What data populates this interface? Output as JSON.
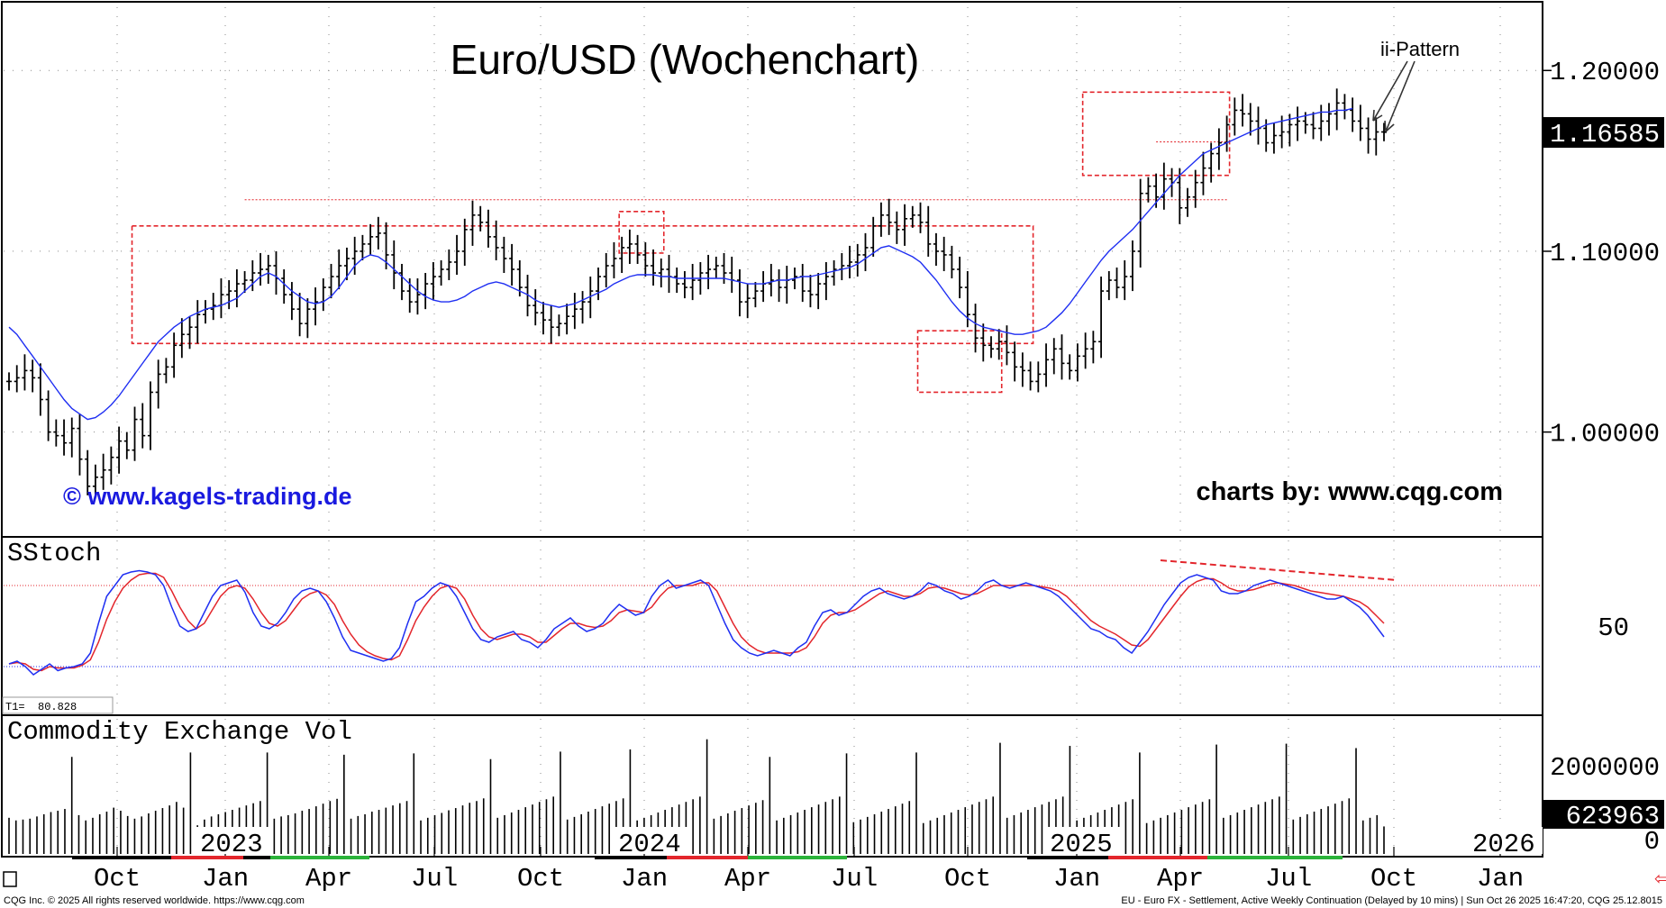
{
  "chart_data": [
    {
      "type": "ohlc",
      "panel": "price",
      "title": "Euro/USD (Wochenchart)",
      "source_left": "© www.kagels-trading.de",
      "source_right": "charts by: www.cqg.com",
      "annotation": "ii-Pattern",
      "ylim": [
        0.945,
        1.235
      ],
      "yticks": [
        {
          "value": 1.0,
          "label": "1.00000"
        },
        {
          "value": 1.1,
          "label": "1.10000"
        },
        {
          "value": 1.2,
          "label": "1.20000"
        }
      ],
      "last_price": {
        "value": 1.16585,
        "label": "1.16585"
      },
      "x_week_index_range": [
        0,
        172
      ],
      "series": [
        {
          "name": "price",
          "closes": [
            1.028,
            1.03,
            1.034,
            1.03,
            1.018,
            1.0,
            0.998,
            0.994,
            1.002,
            0.985,
            0.97,
            0.975,
            0.979,
            0.986,
            0.995,
            0.99,
            1.007,
            0.998,
            1.022,
            1.032,
            1.036,
            1.048,
            1.054,
            1.058,
            1.065,
            1.068,
            1.07,
            1.076,
            1.078,
            1.082,
            1.084,
            1.088,
            1.09,
            1.092,
            1.085,
            1.076,
            1.068,
            1.06,
            1.068,
            1.072,
            1.08,
            1.086,
            1.092,
            1.096,
            1.1,
            1.104,
            1.108,
            1.11,
            1.098,
            1.088,
            1.078,
            1.072,
            1.076,
            1.082,
            1.086,
            1.09,
            1.094,
            1.1,
            1.112,
            1.12,
            1.116,
            1.108,
            1.102,
            1.096,
            1.09,
            1.08,
            1.07,
            1.066,
            1.062,
            1.058,
            1.06,
            1.064,
            1.068,
            1.072,
            1.078,
            1.086,
            1.092,
            1.096,
            1.102,
            1.104,
            1.098,
            1.092,
            1.088,
            1.09,
            1.086,
            1.082,
            1.08,
            1.084,
            1.088,
            1.09,
            1.092,
            1.088,
            1.084,
            1.072,
            1.074,
            1.078,
            1.082,
            1.084,
            1.08,
            1.084,
            1.086,
            1.078,
            1.076,
            1.082,
            1.086,
            1.09,
            1.092,
            1.094,
            1.098,
            1.102,
            1.114,
            1.12,
            1.116,
            1.112,
            1.118,
            1.12,
            1.116,
            1.104,
            1.1,
            1.098,
            1.09,
            1.08,
            1.065,
            1.052,
            1.048,
            1.046,
            1.05,
            1.044,
            1.036,
            1.034,
            1.028,
            1.032,
            1.04,
            1.046,
            1.038,
            1.034,
            1.042,
            1.046,
            1.05,
            1.078,
            1.084,
            1.08,
            1.086,
            1.1,
            1.132,
            1.136,
            1.13,
            1.14,
            1.138,
            1.124,
            1.13,
            1.138,
            1.146,
            1.154,
            1.16,
            1.17,
            1.178,
            1.176,
            1.172,
            1.168,
            1.16,
            1.164,
            1.166,
            1.17,
            1.172,
            1.17,
            1.168,
            1.172,
            1.176,
            1.182,
            1.178,
            1.172,
            1.168,
            1.162,
            1.166,
            1.16585
          ]
        },
        {
          "name": "moving average",
          "values": [
            1.058,
            1.054,
            1.048,
            1.042,
            1.036,
            1.03,
            1.024,
            1.018,
            1.013,
            1.01,
            1.007,
            1.008,
            1.011,
            1.015,
            1.02,
            1.026,
            1.032,
            1.038,
            1.044,
            1.05,
            1.054,
            1.058,
            1.061,
            1.064,
            1.066,
            1.068,
            1.069,
            1.07,
            1.072,
            1.074,
            1.078,
            1.082,
            1.086,
            1.088,
            1.086,
            1.082,
            1.078,
            1.075,
            1.072,
            1.071,
            1.072,
            1.075,
            1.08,
            1.086,
            1.092,
            1.096,
            1.098,
            1.097,
            1.094,
            1.09,
            1.086,
            1.082,
            1.078,
            1.075,
            1.073,
            1.072,
            1.072,
            1.073,
            1.075,
            1.078,
            1.08,
            1.082,
            1.083,
            1.082,
            1.08,
            1.078,
            1.076,
            1.073,
            1.071,
            1.07,
            1.069,
            1.07,
            1.071,
            1.073,
            1.075,
            1.077,
            1.079,
            1.082,
            1.084,
            1.086,
            1.087,
            1.087,
            1.087,
            1.086,
            1.086,
            1.085,
            1.085,
            1.085,
            1.085,
            1.085,
            1.085,
            1.085,
            1.084,
            1.083,
            1.082,
            1.082,
            1.082,
            1.083,
            1.084,
            1.084,
            1.085,
            1.086,
            1.086,
            1.087,
            1.088,
            1.089,
            1.09,
            1.091,
            1.093,
            1.096,
            1.099,
            1.102,
            1.103,
            1.101,
            1.099,
            1.097,
            1.094,
            1.089,
            1.084,
            1.078,
            1.072,
            1.067,
            1.063,
            1.06,
            1.058,
            1.057,
            1.056,
            1.055,
            1.054,
            1.054,
            1.055,
            1.056,
            1.058,
            1.062,
            1.066,
            1.071,
            1.077,
            1.083,
            1.089,
            1.095,
            1.1,
            1.104,
            1.108,
            1.112,
            1.117,
            1.122,
            1.127,
            1.132,
            1.137,
            1.142,
            1.146,
            1.15,
            1.154,
            1.156,
            1.158,
            1.16,
            1.162,
            1.164,
            1.166,
            1.168,
            1.17,
            1.171,
            1.172,
            1.173,
            1.174,
            1.175,
            1.176,
            1.177,
            1.177,
            1.178,
            1.178,
            1.179
          ]
        }
      ],
      "zones": [
        {
          "from_index": 16,
          "to_index": 130,
          "low": 1.049,
          "high": 1.114
        },
        {
          "from_index": 78,
          "to_index": 83,
          "low": 1.099,
          "high": 1.122
        },
        {
          "from_index": 116,
          "to_index": 126,
          "low": 1.022,
          "high": 1.056
        },
        {
          "from_index": 137,
          "to_index": 155,
          "low": 1.142,
          "high": 1.188
        }
      ]
    },
    {
      "type": "line",
      "panel": "indicator",
      "title": "SStoch",
      "readout": "T1=  80.828",
      "yticks": [
        {
          "value": 50,
          "label": "50"
        }
      ],
      "ylim": [
        0,
        100
      ],
      "levels": [
        80,
        20
      ],
      "series": [
        {
          "name": "fast",
          "values": [
            22,
            24,
            20,
            14,
            18,
            22,
            17,
            19,
            20,
            22,
            30,
            52,
            72,
            80,
            88,
            90,
            91,
            90,
            88,
            80,
            64,
            50,
            46,
            48,
            60,
            72,
            80,
            82,
            84,
            75,
            60,
            50,
            48,
            52,
            60,
            70,
            76,
            78,
            76,
            68,
            56,
            42,
            32,
            30,
            28,
            26,
            24,
            26,
            34,
            52,
            68,
            72,
            78,
            82,
            80,
            72,
            60,
            48,
            40,
            38,
            42,
            44,
            46,
            40,
            38,
            34,
            40,
            48,
            52,
            56,
            50,
            46,
            48,
            52,
            60,
            66,
            62,
            58,
            60,
            72,
            80,
            84,
            78,
            80,
            82,
            84,
            80,
            66,
            52,
            40,
            34,
            30,
            28,
            30,
            32,
            30,
            28,
            34,
            38,
            50,
            60,
            62,
            58,
            60,
            66,
            72,
            76,
            78,
            74,
            72,
            70,
            72,
            76,
            82,
            80,
            76,
            74,
            70,
            72,
            76,
            82,
            84,
            80,
            78,
            80,
            82,
            80,
            78,
            76,
            72,
            66,
            60,
            54,
            48,
            46,
            42,
            40,
            34,
            30,
            38,
            46,
            56,
            66,
            74,
            82,
            86,
            88,
            86,
            84,
            76,
            74,
            74,
            76,
            80,
            82,
            84,
            82,
            80,
            78,
            76,
            74,
            72,
            70,
            70,
            72,
            68,
            64,
            58,
            50,
            42
          ]
        },
        {
          "name": "slow",
          "values": [
            22,
            23,
            22,
            18,
            17,
            20,
            19,
            19,
            19,
            21,
            25,
            38,
            55,
            68,
            78,
            84,
            88,
            89,
            89,
            86,
            76,
            64,
            54,
            48,
            52,
            62,
            72,
            78,
            80,
            78,
            70,
            60,
            52,
            50,
            54,
            62,
            70,
            74,
            76,
            73,
            66,
            54,
            44,
            36,
            31,
            28,
            26,
            25,
            28,
            40,
            54,
            64,
            72,
            78,
            80,
            78,
            70,
            58,
            48,
            42,
            40,
            42,
            44,
            44,
            42,
            38,
            38,
            43,
            48,
            52,
            52,
            50,
            49,
            50,
            54,
            60,
            62,
            61,
            60,
            64,
            72,
            78,
            80,
            80,
            80,
            82,
            82,
            76,
            64,
            52,
            42,
            36,
            32,
            30,
            30,
            30,
            30,
            31,
            34,
            42,
            52,
            58,
            60,
            60,
            62,
            66,
            70,
            74,
            76,
            74,
            72,
            72,
            74,
            78,
            79,
            78,
            76,
            74,
            73,
            74,
            77,
            80,
            80,
            80,
            80,
            80,
            80,
            79,
            78,
            76,
            72,
            66,
            60,
            54,
            50,
            47,
            44,
            40,
            36,
            35,
            40,
            48,
            56,
            64,
            72,
            79,
            83,
            85,
            85,
            82,
            78,
            76,
            76,
            77,
            79,
            81,
            82,
            81,
            80,
            78,
            76,
            75,
            74,
            73,
            72,
            70,
            68,
            64,
            58,
            52
          ]
        }
      ],
      "divergence_note": "declining highs"
    },
    {
      "type": "bar",
      "panel": "volume",
      "title": "Commodity Exchange Vol",
      "yticks": [
        {
          "value": 0,
          "label": "0"
        },
        {
          "value": 2000000,
          "label": "2000000"
        }
      ],
      "ylim": [
        0,
        2900000
      ],
      "last_volume": {
        "value": 623963,
        "label": "623963"
      },
      "values": [
        820000,
        760000,
        780000,
        800000,
        850000,
        900000,
        950000,
        980000,
        1020000,
        2200000,
        880000,
        760000,
        820000,
        900000,
        960000,
        1050000,
        980000,
        860000,
        800000,
        850000,
        920000,
        980000,
        1040000,
        1100000,
        1180000,
        1050000,
        2300000,
        650000,
        780000,
        850000,
        900000,
        950000,
        1000000,
        1050000,
        1100000,
        1150000,
        1200000,
        2300000,
        800000,
        850000,
        880000,
        920000,
        980000,
        1020000,
        1080000,
        1140000,
        1200000,
        1250000,
        2250000,
        800000,
        860000,
        900000,
        960000,
        1000000,
        1050000,
        1100000,
        1150000,
        1200000,
        2280000,
        760000,
        820000,
        880000,
        930000,
        990000,
        1040000,
        1100000,
        1160000,
        1200000,
        1260000,
        2150000,
        820000,
        880000,
        940000,
        1000000,
        1060000,
        1120000,
        1180000,
        1240000,
        1300000,
        2320000,
        780000,
        840000,
        900000,
        960000,
        1020000,
        1080000,
        1140000,
        1200000,
        1260000,
        2370000,
        760000,
        820000,
        880000,
        940000,
        1000000,
        1060000,
        1120000,
        1180000,
        1240000,
        1300000,
        2600000,
        800000,
        860000,
        920000,
        980000,
        1040000,
        1100000,
        1160000,
        1220000,
        2200000,
        760000,
        820000,
        880000,
        940000,
        1000000,
        1060000,
        1120000,
        1180000,
        1240000,
        1300000,
        2280000,
        720000,
        780000,
        840000,
        900000,
        960000,
        1020000,
        1080000,
        1140000,
        1200000,
        2300000,
        700000,
        760000,
        820000,
        880000,
        940000,
        1000000,
        1060000,
        1120000,
        1180000,
        1240000,
        1300000,
        2520000,
        820000,
        880000,
        940000,
        1000000,
        1060000,
        1120000,
        1180000,
        1240000,
        1300000,
        2450000,
        760000,
        820000,
        880000,
        940000,
        1000000,
        1060000,
        1120000,
        1180000,
        1240000,
        2300000,
        700000,
        760000,
        820000,
        880000,
        940000,
        1000000,
        1060000,
        1120000,
        1180000,
        1240000,
        2480000,
        820000,
        880000,
        940000,
        1000000,
        1060000,
        1120000,
        1180000,
        1240000,
        1300000,
        2500000,
        780000,
        840000,
        900000,
        960000,
        1020000,
        1080000,
        1140000,
        1200000,
        1260000,
        2400000,
        760000,
        820000,
        880000,
        623963
      ]
    }
  ],
  "x_axis": {
    "month_labels": [
      "Oct",
      "Jan",
      "Apr",
      "Jul",
      "Oct",
      "Jan",
      "Apr",
      "Jul",
      "Oct",
      "Jan",
      "Apr",
      "Jul",
      "Oct",
      "Jan"
    ],
    "year_labels": [
      "2023",
      "2024",
      "2025",
      "2026"
    ]
  },
  "footer": {
    "left": "CQG Inc. © 2025 All rights reserved worldwide. https://www.cqg.com",
    "right": "EU - Euro FX - Settlement, Active Weekly Continuation (Delayed by 10 mins) | Sun Oct 26 2025 16:47:20, CQG 25.12.8015"
  },
  "colors": {
    "bars": "#000000",
    "ma": "#1f2ff2",
    "zone": "#e3262c",
    "stoch_fast": "#1f2ff2",
    "stoch_slow": "#e3262c",
    "source_text": "#1a1adf",
    "last_box": "#000000"
  }
}
